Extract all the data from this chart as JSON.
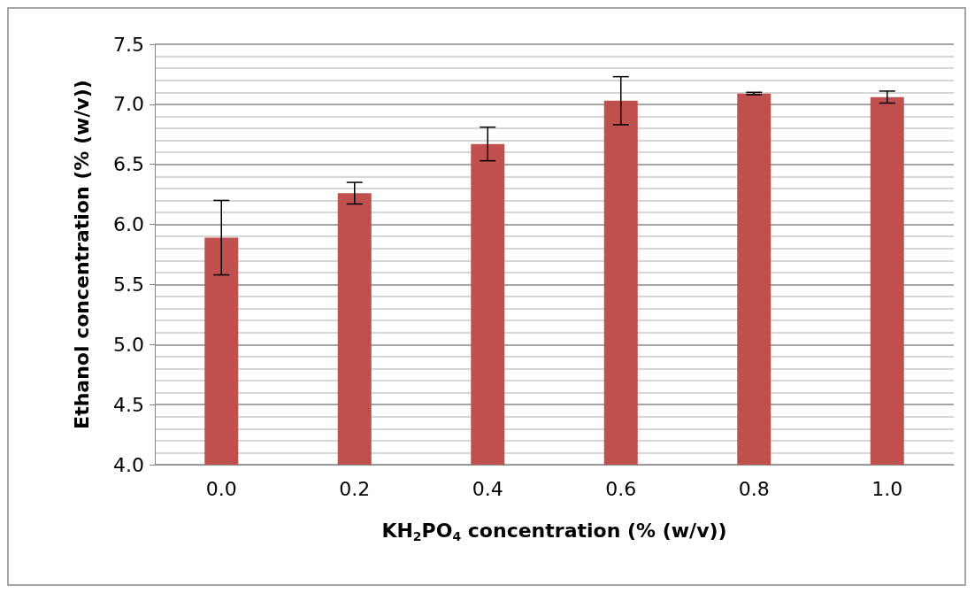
{
  "chart_data": {
    "type": "bar",
    "xlabel": "KH$_{2}$PO$_{4}$ concentration (% (w/v))",
    "ylabel": "Ethanol concentration (% (w/v))",
    "categories": [
      "0.0",
      "0.2",
      "0.4",
      "0.6",
      "0.8",
      "1.0"
    ],
    "values": [
      5.89,
      6.26,
      6.67,
      7.03,
      7.09,
      7.06
    ],
    "errors": [
      0.31,
      0.09,
      0.14,
      0.2,
      0.01,
      0.05
    ],
    "color": "#c0504d",
    "ylim": [
      4.0,
      7.5
    ],
    "yticks": [
      {
        "value": 4,
        "label": "4.0"
      },
      {
        "value": 4.5,
        "label": "4.5"
      },
      {
        "value": 5,
        "label": "5.0"
      },
      {
        "value": 5.5,
        "label": "5.5"
      },
      {
        "value": 6,
        "label": "6.0"
      },
      {
        "value": 6.5,
        "label": "6.5"
      },
      {
        "value": 7,
        "label": "7.0"
      },
      {
        "value": 7.5,
        "label": "7.5"
      }
    ],
    "grid": "y"
  }
}
